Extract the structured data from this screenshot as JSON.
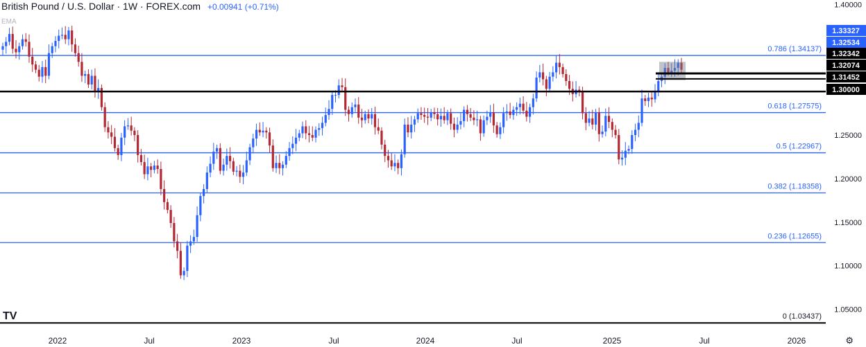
{
  "header": {
    "title": "British Pound / U.S. Dollar · 1W · FOREX.com",
    "change": "+0.00941 (+0.71%)"
  },
  "indicator_label": "EMA",
  "logo_text": "TV",
  "settings_icon": "gear-icon",
  "colors": {
    "up": "#2962ff",
    "down": "#b22833",
    "fib": "#2962ff",
    "key_level": "#000000",
    "price_tag": "#2962ff"
  },
  "chart_data": {
    "type": "candlestick",
    "symbol": "GBPUSD",
    "timeframe": "1W",
    "ylim": [
      1.025,
      1.405
    ],
    "y_ticks": [
      "1.05000",
      "1.10000",
      "1.15000",
      "1.20000",
      "1.25000",
      "1.30000",
      "1.35000",
      "1.40000"
    ],
    "x_ticks": [
      "2022",
      "Jul",
      "2023",
      "Jul",
      "2024",
      "Jul",
      "2025",
      "Jul",
      "2026"
    ],
    "fib_levels": [
      {
        "label": "0.786 (1.34137)",
        "value": 1.34137
      },
      {
        "label": "0.618 (1.27575)",
        "value": 1.27575
      },
      {
        "label": "0.5 (1.22967)",
        "value": 1.22967
      },
      {
        "label": "0.382 (1.18358)",
        "value": 1.18358
      },
      {
        "label": "0.236 (1.12655)",
        "value": 1.12655
      },
      {
        "label": "0 (1.03437)",
        "value": 1.03437
      }
    ],
    "key_levels": [
      1.3,
      1.3145,
      1.3207
    ],
    "price_tags": [
      "1.33327",
      "1.32534",
      "1.32342",
      "1.32074",
      "1.31452",
      "1.30000"
    ],
    "candles_close": [
      1.352,
      1.357,
      1.366,
      1.349,
      1.345,
      1.352,
      1.36,
      1.357,
      1.34,
      1.331,
      1.325,
      1.317,
      1.328,
      1.318,
      1.344,
      1.352,
      1.358,
      1.364,
      1.365,
      1.36,
      1.37,
      1.354,
      1.344,
      1.334,
      1.318,
      1.32,
      1.308,
      1.318,
      1.3,
      1.304,
      1.282,
      1.259,
      1.253,
      1.248,
      1.235,
      1.227,
      1.247,
      1.26,
      1.261,
      1.255,
      1.25,
      1.227,
      1.219,
      1.205,
      1.214,
      1.21,
      1.215,
      1.211,
      1.188,
      1.173,
      1.164,
      1.149,
      1.128,
      1.117,
      1.089,
      1.094,
      1.123,
      1.128,
      1.133,
      1.158,
      1.18,
      1.188,
      1.207,
      1.217,
      1.231,
      1.235,
      1.209,
      1.216,
      1.226,
      1.22,
      1.208,
      1.209,
      1.202,
      1.207,
      1.221,
      1.236,
      1.246,
      1.256,
      1.253,
      1.255,
      1.253,
      1.238,
      1.212,
      1.218,
      1.212,
      1.216,
      1.226,
      1.235,
      1.24,
      1.247,
      1.252,
      1.26,
      1.252,
      1.25,
      1.247,
      1.256,
      1.258,
      1.264,
      1.273,
      1.28,
      1.296,
      1.296,
      1.307,
      1.305,
      1.279,
      1.274,
      1.282,
      1.285,
      1.27,
      1.267,
      1.274,
      1.269,
      1.274,
      1.259,
      1.255,
      1.239,
      1.226,
      1.221,
      1.214,
      1.218,
      1.212,
      1.228,
      1.262,
      1.253,
      1.262,
      1.268,
      1.275,
      1.273,
      1.271,
      1.27,
      1.276,
      1.274,
      1.268,
      1.272,
      1.267,
      1.275,
      1.263,
      1.256,
      1.262,
      1.266,
      1.279,
      1.274,
      1.27,
      1.267,
      1.268,
      1.252,
      1.267,
      1.271,
      1.276,
      1.261,
      1.251,
      1.259,
      1.275,
      1.277,
      1.273,
      1.279,
      1.282,
      1.286,
      1.278,
      1.271,
      1.282,
      1.292,
      1.316,
      1.322,
      1.314,
      1.303,
      1.317,
      1.322,
      1.333,
      1.328,
      1.32,
      1.312,
      1.303,
      1.297,
      1.302,
      1.3,
      1.275,
      1.264,
      1.269,
      1.262,
      1.276,
      1.251,
      1.254,
      1.272,
      1.265,
      1.256,
      1.25,
      1.222,
      1.224,
      1.232,
      1.234,
      1.25,
      1.256,
      1.264,
      1.292,
      1.289,
      1.293,
      1.291,
      1.3,
      1.312,
      1.317,
      1.327,
      1.322,
      1.324,
      1.327,
      1.333,
      1.325
    ]
  }
}
